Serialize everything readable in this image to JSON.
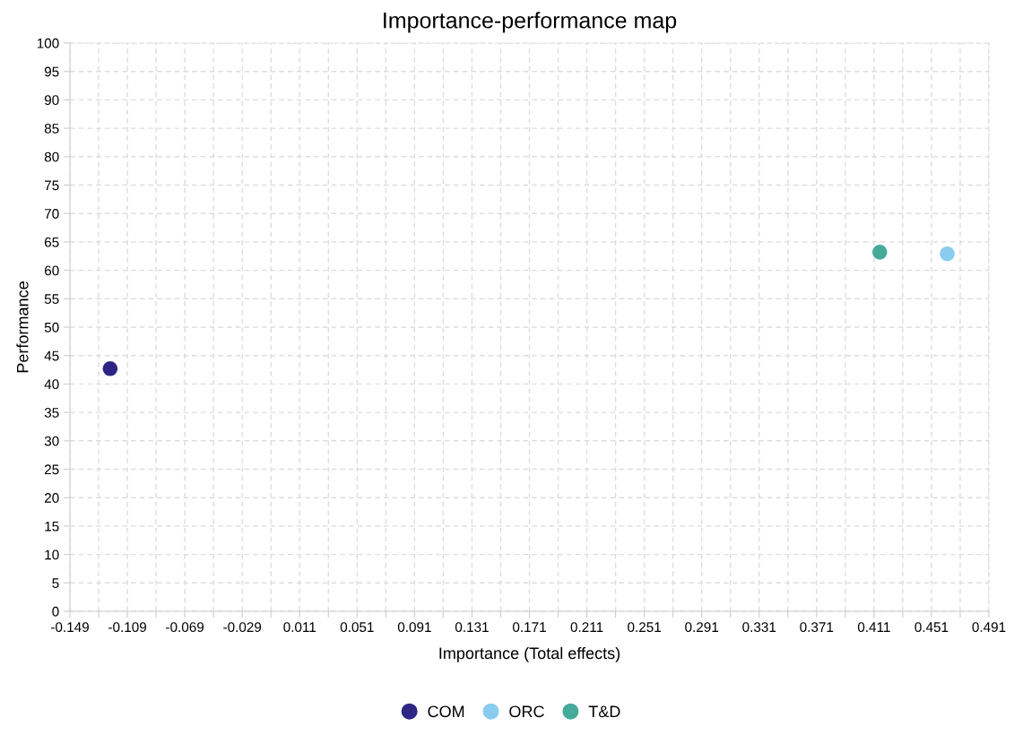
{
  "chart_data": {
    "type": "scatter",
    "title": "Importance-performance map",
    "xlabel": "Importance (Total effects)",
    "ylabel": "Performance",
    "series": [
      {
        "name": "COM",
        "color": "#2e2585",
        "x": [
          -0.121
        ],
        "values": [
          42.7
        ]
      },
      {
        "name": "ORC",
        "color": "#88ccee",
        "x": [
          0.462
        ],
        "values": [
          62.9
        ]
      },
      {
        "name": "T&D",
        "color": "#44aa99",
        "x": [
          0.415
        ],
        "values": [
          63.2
        ]
      }
    ],
    "xlim": [
      -0.149,
      0.491
    ],
    "ylim": [
      0,
      100
    ],
    "xticks": [
      -0.149,
      {
        "value": -0.129,
        "label": null
      },
      -0.109,
      {
        "value": -0.089,
        "label": null
      },
      -0.069,
      {
        "value": -0.049,
        "label": null
      },
      -0.029,
      {
        "value": -0.009,
        "label": null
      },
      0.011,
      {
        "value": 0.031,
        "label": null
      },
      0.051,
      {
        "value": 0.071,
        "label": null
      },
      0.091,
      {
        "value": 0.111,
        "label": null
      },
      0.131,
      {
        "value": 0.151,
        "label": null
      },
      0.171,
      {
        "value": 0.191,
        "label": null
      },
      0.211,
      {
        "value": 0.231,
        "label": null
      },
      0.251,
      {
        "value": 0.271,
        "label": null
      },
      0.291,
      {
        "value": 0.311,
        "label": null
      },
      0.331,
      {
        "value": 0.351,
        "label": null
      },
      0.371,
      {
        "value": 0.391,
        "label": null
      },
      0.411,
      {
        "value": 0.431,
        "label": null
      },
      0.451,
      {
        "value": 0.471,
        "label": null
      },
      0.491
    ],
    "yticks": [
      0,
      5,
      10,
      15,
      20,
      25,
      30,
      35,
      40,
      45,
      50,
      55,
      60,
      65,
      70,
      75,
      80,
      85,
      90,
      95,
      100
    ],
    "grid": true,
    "legend": "bottom",
    "marker": "circle"
  }
}
